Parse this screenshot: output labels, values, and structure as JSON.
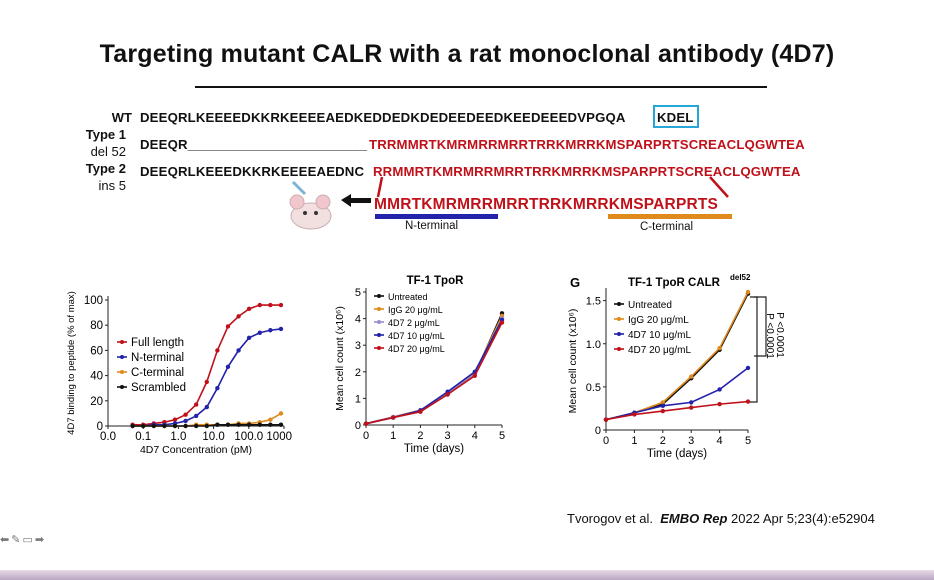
{
  "slide": {
    "title": "Targeting mutant CALR with a rat monoclonal antibody (4D7)",
    "sequences": {
      "wt_label": "WT",
      "wt_seq": "DEEQRLKEEEEDKKRKEEEEAEDKEDDEDKDEDEEDEEDKEEDEEEDVPGQA",
      "wt_kdel": "KDEL",
      "type1_label": "Type 1",
      "type1_sub": "del 52",
      "type1_seq_black": "DEEQR________________________",
      "type1_seq_red": "TRRMMRTKMRMRRMRRTRRKMRRKMSPARPRTSCREACLQGWTEA",
      "type2_label": "Type 2",
      "type2_sub": "ins 5",
      "type2_seq_black": "DEEQRLKEEEDKKRKEEEEAEDNC",
      "type2_seq_red": "RRMMRTKMRMRRMRRTRRKMRRKMSPARPRTSCREACLQGWTEA",
      "immunogen": "MMRTKMRMRRMRRTRRKMRRKMSPARPRTS",
      "n_terminal": "N-terminal",
      "c_terminal": "C-terminal"
    },
    "citation": {
      "authors": "Tvorogov et al.",
      "journal": "EMBO Rep",
      "ref": "2022 Apr 5;23(4):e52904"
    },
    "colors": {
      "red": "#c0111a",
      "blue": "#2222aa",
      "orange": "#e08a1e",
      "cyan": "#26a6d9"
    }
  },
  "chart_data": [
    {
      "type": "line",
      "title": "",
      "xlabel": "4D7 Concentration (pM)",
      "ylabel": "4D7 binding to peptide (% of max)",
      "x_scale": "log",
      "x_ticks": [
        "0.0",
        "0.1",
        "1.0",
        "10.0",
        "100.0",
        "1000.0"
      ],
      "y_ticks": [
        "0",
        "20",
        "40",
        "60",
        "80",
        "100"
      ],
      "ylim": [
        0,
        100
      ],
      "legend": [
        "Full length",
        "N-terminal",
        "C-terminal",
        "Scrambled"
      ],
      "x": [
        0.05,
        0.1,
        0.2,
        0.4,
        0.8,
        1.6,
        3.2,
        6.4,
        12.8,
        25.6,
        51.2,
        102,
        205,
        410,
        820
      ],
      "series": [
        {
          "name": "Full length",
          "color": "#c0111a",
          "values": [
            1,
            1,
            2,
            3,
            5,
            9,
            17,
            35,
            60,
            79,
            87,
            93,
            96,
            96,
            96
          ]
        },
        {
          "name": "N-terminal",
          "color": "#2222aa",
          "values": [
            0,
            0,
            1,
            1,
            2,
            4,
            8,
            15,
            30,
            47,
            60,
            70,
            74,
            76,
            77
          ]
        },
        {
          "name": "C-terminal",
          "color": "#e08a1e",
          "values": [
            0,
            0,
            0,
            0,
            0,
            0,
            1,
            1,
            1,
            1,
            2,
            2,
            3,
            5,
            10
          ]
        },
        {
          "name": "Scrambled",
          "color": "#111111",
          "values": [
            0,
            0,
            0,
            0,
            0,
            0,
            0,
            0,
            1,
            1,
            1,
            1,
            1,
            1,
            1
          ]
        }
      ]
    },
    {
      "type": "line",
      "title": "TF-1 TpoR",
      "xlabel": "Time (days)",
      "ylabel": "Mean cell count (x10⁶)",
      "x": [
        0,
        1,
        2,
        3,
        4,
        5
      ],
      "x_ticks": [
        "0",
        "1",
        "2",
        "3",
        "4",
        "5"
      ],
      "y_ticks": [
        "0",
        "1",
        "2",
        "3",
        "4",
        "5"
      ],
      "ylim": [
        0,
        5
      ],
      "series": [
        {
          "name": "Untreated",
          "color": "#111111",
          "values": [
            0.05,
            0.3,
            0.55,
            1.15,
            1.9,
            4.2
          ]
        },
        {
          "name": "IgG 20 μg/mL",
          "color": "#e08a1e",
          "values": [
            0.05,
            0.3,
            0.55,
            1.2,
            1.95,
            4.1
          ]
        },
        {
          "name": "4D7 2 μg/mL",
          "color": "#9b8fcf",
          "values": [
            0.05,
            0.3,
            0.5,
            1.2,
            1.9,
            4.0
          ]
        },
        {
          "name": "4D7 10 μg/mL",
          "color": "#2222aa",
          "values": [
            0.05,
            0.28,
            0.55,
            1.25,
            2.0,
            3.95
          ]
        },
        {
          "name": "4D7 20 μg/mL",
          "color": "#c0111a",
          "values": [
            0.05,
            0.28,
            0.5,
            1.15,
            1.85,
            3.85
          ]
        }
      ]
    },
    {
      "type": "line",
      "panel": "G",
      "title": "TF-1 TpoR CALR",
      "title_sup": "del52",
      "xlabel": "Time (days)",
      "ylabel": "Mean cell count (x10⁶)",
      "x": [
        0,
        1,
        2,
        3,
        4,
        5
      ],
      "x_ticks": [
        "0",
        "1",
        "2",
        "3",
        "4",
        "5"
      ],
      "y_ticks": [
        "0",
        "0.5",
        "1.0",
        "1.5"
      ],
      "ylim": [
        0,
        1.6
      ],
      "annotations": [
        "P <0.0001",
        "P <0.0001"
      ],
      "series": [
        {
          "name": "Untreated",
          "color": "#111111",
          "values": [
            0.12,
            0.2,
            0.3,
            0.6,
            0.93,
            1.58
          ]
        },
        {
          "name": "IgG 20 μg/mL",
          "color": "#e08a1e",
          "values": [
            0.12,
            0.2,
            0.32,
            0.62,
            0.95,
            1.6
          ]
        },
        {
          "name": "4D7 10 μg/mL",
          "color": "#2222aa",
          "values": [
            0.12,
            0.2,
            0.28,
            0.32,
            0.47,
            0.72
          ]
        },
        {
          "name": "4D7 20 μg/mL",
          "color": "#c0111a",
          "values": [
            0.12,
            0.18,
            0.22,
            0.26,
            0.3,
            0.33
          ]
        }
      ]
    }
  ]
}
